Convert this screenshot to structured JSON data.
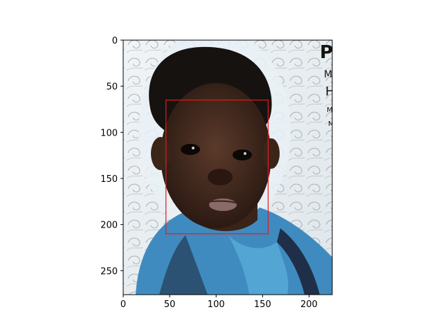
{
  "figure": {
    "type": "image-with-axes",
    "image_subject": "child-portrait-photo",
    "xlim": [
      0,
      225
    ],
    "ylim": [
      276,
      0
    ],
    "x_ticks": [
      0,
      50,
      100,
      150,
      200
    ],
    "y_ticks": [
      0,
      50,
      100,
      150,
      200,
      250
    ],
    "bounding_box": {
      "x0": 46,
      "y0": 65,
      "x1": 156,
      "y1": 210,
      "color": "#e41a1c"
    },
    "watermark_glyphs": [
      "P",
      "M",
      "H",
      "M",
      "M"
    ]
  }
}
